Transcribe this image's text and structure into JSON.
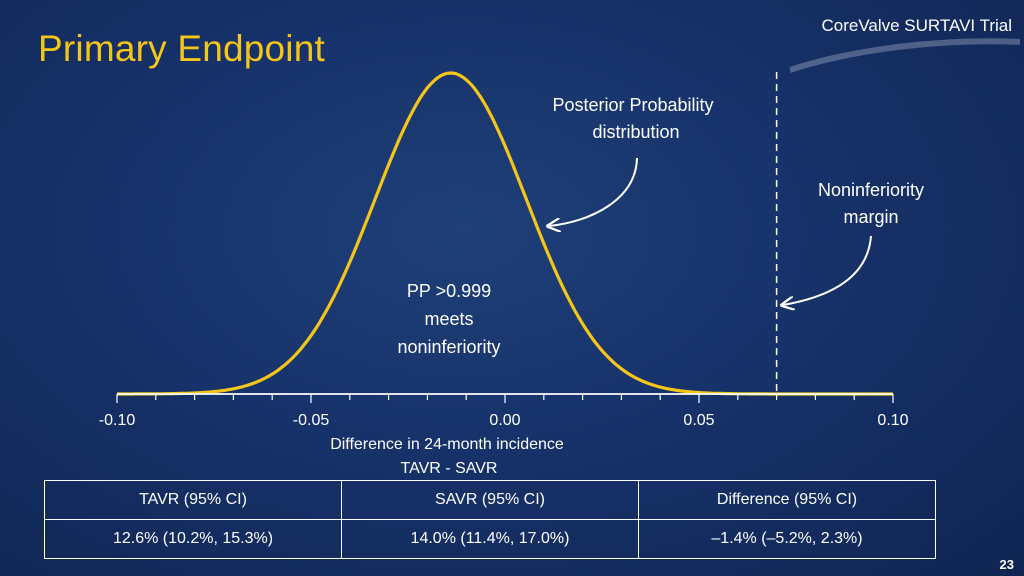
{
  "slide": {
    "title": "Primary Endpoint",
    "brand": "CoreValve SURTAVI Trial",
    "page_number": "23"
  },
  "annotations": {
    "posterior_line1": "Posterior Probability",
    "posterior_line2": "distribution",
    "margin_line1": "Noninferiority",
    "margin_line2": "margin",
    "pp_line1": "PP >0.999",
    "pp_line2": "meets",
    "pp_line3": "noninferiority"
  },
  "colors": {
    "curve": "#f5c518",
    "axis": "#ffffff",
    "title": "#f5c518"
  },
  "chart_data": {
    "type": "line",
    "title": "",
    "xlabel_line1": "Difference in 24-month incidence",
    "xlabel_line2": "TAVR - SAVR",
    "ylabel": "",
    "xlim": [
      -0.1,
      0.1
    ],
    "x_ticks": [
      "-0.10",
      "-0.05",
      "0.00",
      "0.05",
      "0.10"
    ],
    "x_tick_values": [
      -0.1,
      -0.05,
      0.0,
      0.05,
      0.1
    ],
    "distribution": {
      "kind": "normal",
      "mean": -0.014,
      "sd": 0.0195
    },
    "noninferiority_margin": 0.07,
    "grid": false,
    "legend": "none"
  },
  "table": {
    "headers": [
      "TAVR  (95% CI)",
      "SAVR (95% CI)",
      "Difference  (95% CI)"
    ],
    "rows": [
      [
        "12.6%  (10.2%, 15.3%)",
        "14.0%  (11.4%, 17.0%)",
        "–1.4% (–5.2%, 2.3%)"
      ]
    ]
  }
}
